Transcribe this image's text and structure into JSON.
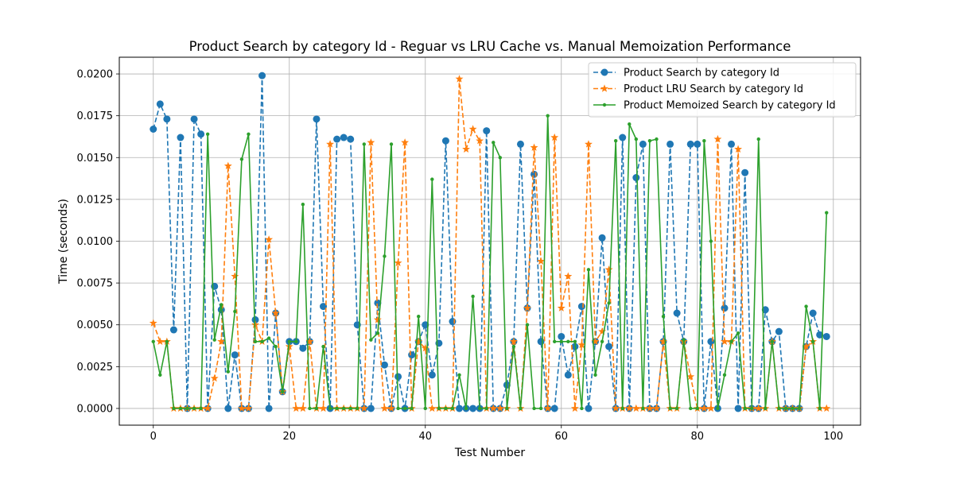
{
  "chart_data": {
    "type": "line",
    "title": "Product Search by category Id - Reguar vs LRU Cache vs. Manual Memoization Performance",
    "xlabel": "Test Number",
    "ylabel": "Time (seconds)",
    "xlim": [
      -5,
      104
    ],
    "ylim": [
      -0.001,
      0.021
    ],
    "xticks": [
      0,
      20,
      40,
      60,
      80,
      100
    ],
    "xtick_labels": [
      "0",
      "20",
      "40",
      "60",
      "80",
      "100"
    ],
    "yticks": [
      0,
      0.0025,
      0.005,
      0.0075,
      0.01,
      0.0125,
      0.015,
      0.0175,
      0.02
    ],
    "ytick_labels": [
      "0.0000",
      "0.0025",
      "0.0050",
      "0.0075",
      "0.0100",
      "0.0125",
      "0.0150",
      "0.0175",
      "0.0200"
    ],
    "grid": true,
    "legend_position": "top-right",
    "series": [
      {
        "name": "Product Search by category Id",
        "color": "#1f77b4",
        "marker": "circle",
        "line_style": "dashed",
        "values": [
          0.0167,
          0.0182,
          0.0173,
          0.0047,
          0.0162,
          0,
          0.0173,
          0.0164,
          0,
          0.0073,
          0.0059,
          0,
          0.0032,
          0,
          0,
          0.0053,
          0.0199,
          0,
          0.0057,
          0.001,
          0.004,
          0.004,
          0.0036,
          0.004,
          0.0173,
          0.0061,
          0,
          0.0161,
          0.0162,
          0.0161,
          0.005,
          0,
          0,
          0.0063,
          0.0026,
          0,
          0.0019,
          0,
          0.0032,
          0.004,
          0.005,
          0.002,
          0.0039,
          0.016,
          0.0052,
          0,
          0,
          0,
          0,
          0.0166,
          0,
          0,
          0.0014,
          0.004,
          0.0158,
          0.006,
          0.014,
          0.004,
          0,
          0,
          0.0043,
          0.002,
          0.0037,
          0.0061,
          0,
          0.004,
          0.0102,
          0.0037,
          0,
          0.0162,
          0,
          0.0138,
          0.0158,
          0,
          0,
          0.004,
          0.0158,
          0.0057,
          0.004,
          0.0158,
          0.0158,
          0,
          0.004,
          0,
          0.006,
          0.0158,
          0,
          0.0141,
          0,
          0,
          0.0059,
          0.004,
          0.0046,
          0,
          0,
          0,
          0.0037,
          0.0057,
          0.0044,
          0.0043
        ]
      },
      {
        "name": "Product LRU Search by category Id",
        "color": "#ff7f0e",
        "marker": "star",
        "line_style": "dashed",
        "values": [
          0.0051,
          0.004,
          0.004,
          0,
          0,
          0,
          0,
          0,
          0,
          0.0018,
          0.004,
          0.0145,
          0.0079,
          0,
          0,
          0.005,
          0.004,
          0.0101,
          0.0057,
          0.001,
          0.0037,
          0,
          0,
          0.004,
          0,
          0,
          0.0158,
          0,
          0,
          0,
          0,
          0,
          0.0159,
          0.0053,
          0,
          0,
          0.0087,
          0.0159,
          0,
          0.004,
          0.0036,
          0,
          0,
          0,
          0,
          0.0197,
          0.0155,
          0.0167,
          0.016,
          0,
          0,
          0,
          0,
          0.004,
          0,
          0.006,
          0.0156,
          0.0088,
          0,
          0.0162,
          0.006,
          0.0079,
          0,
          0.0038,
          0.0158,
          0.004,
          0.0046,
          0.0083,
          0,
          0,
          0,
          0,
          0,
          0,
          0,
          0.004,
          0,
          0,
          0.004,
          0.0019,
          0,
          0,
          0,
          0.0161,
          0.004,
          0.004,
          0.0155,
          0,
          0,
          0,
          0,
          0.004,
          0,
          0,
          0,
          0,
          0.0037,
          0.004,
          0,
          0
        ]
      },
      {
        "name": "Product Memoized Search by category Id",
        "color": "#2ca02c",
        "marker": "dot",
        "line_style": "solid",
        "values": [
          0.004,
          0.002,
          0.004,
          0,
          0,
          0,
          0,
          0,
          0.0164,
          0.0041,
          0.0062,
          0.0022,
          0.0058,
          0.0149,
          0.0164,
          0.004,
          0.004,
          0.0042,
          0.0037,
          0.001,
          0.004,
          0.004,
          0.0122,
          0,
          0,
          0.0037,
          0,
          0,
          0,
          0,
          0,
          0.0158,
          0.0041,
          0.0045,
          0.0091,
          0.0158,
          0,
          0,
          0,
          0.0055,
          0,
          0.0137,
          0,
          0,
          0,
          0.002,
          0,
          0.0067,
          0,
          0,
          0.0159,
          0.015,
          0,
          0.0037,
          0,
          0.005,
          0,
          0,
          0.0175,
          0.004,
          0.004,
          0.004,
          0.004,
          0,
          0.0083,
          0.002,
          0.004,
          0.0063,
          0.016,
          0,
          0.017,
          0.0161,
          0,
          0.016,
          0.0161,
          0.0055,
          0,
          0,
          0.0041,
          0,
          0,
          0.016,
          0.01,
          0,
          0.002,
          0.004,
          0.0045,
          0,
          0,
          0.0161,
          0,
          0.004,
          0,
          0,
          0,
          0,
          0.0061,
          0.004,
          0,
          0.0117
        ]
      }
    ]
  }
}
